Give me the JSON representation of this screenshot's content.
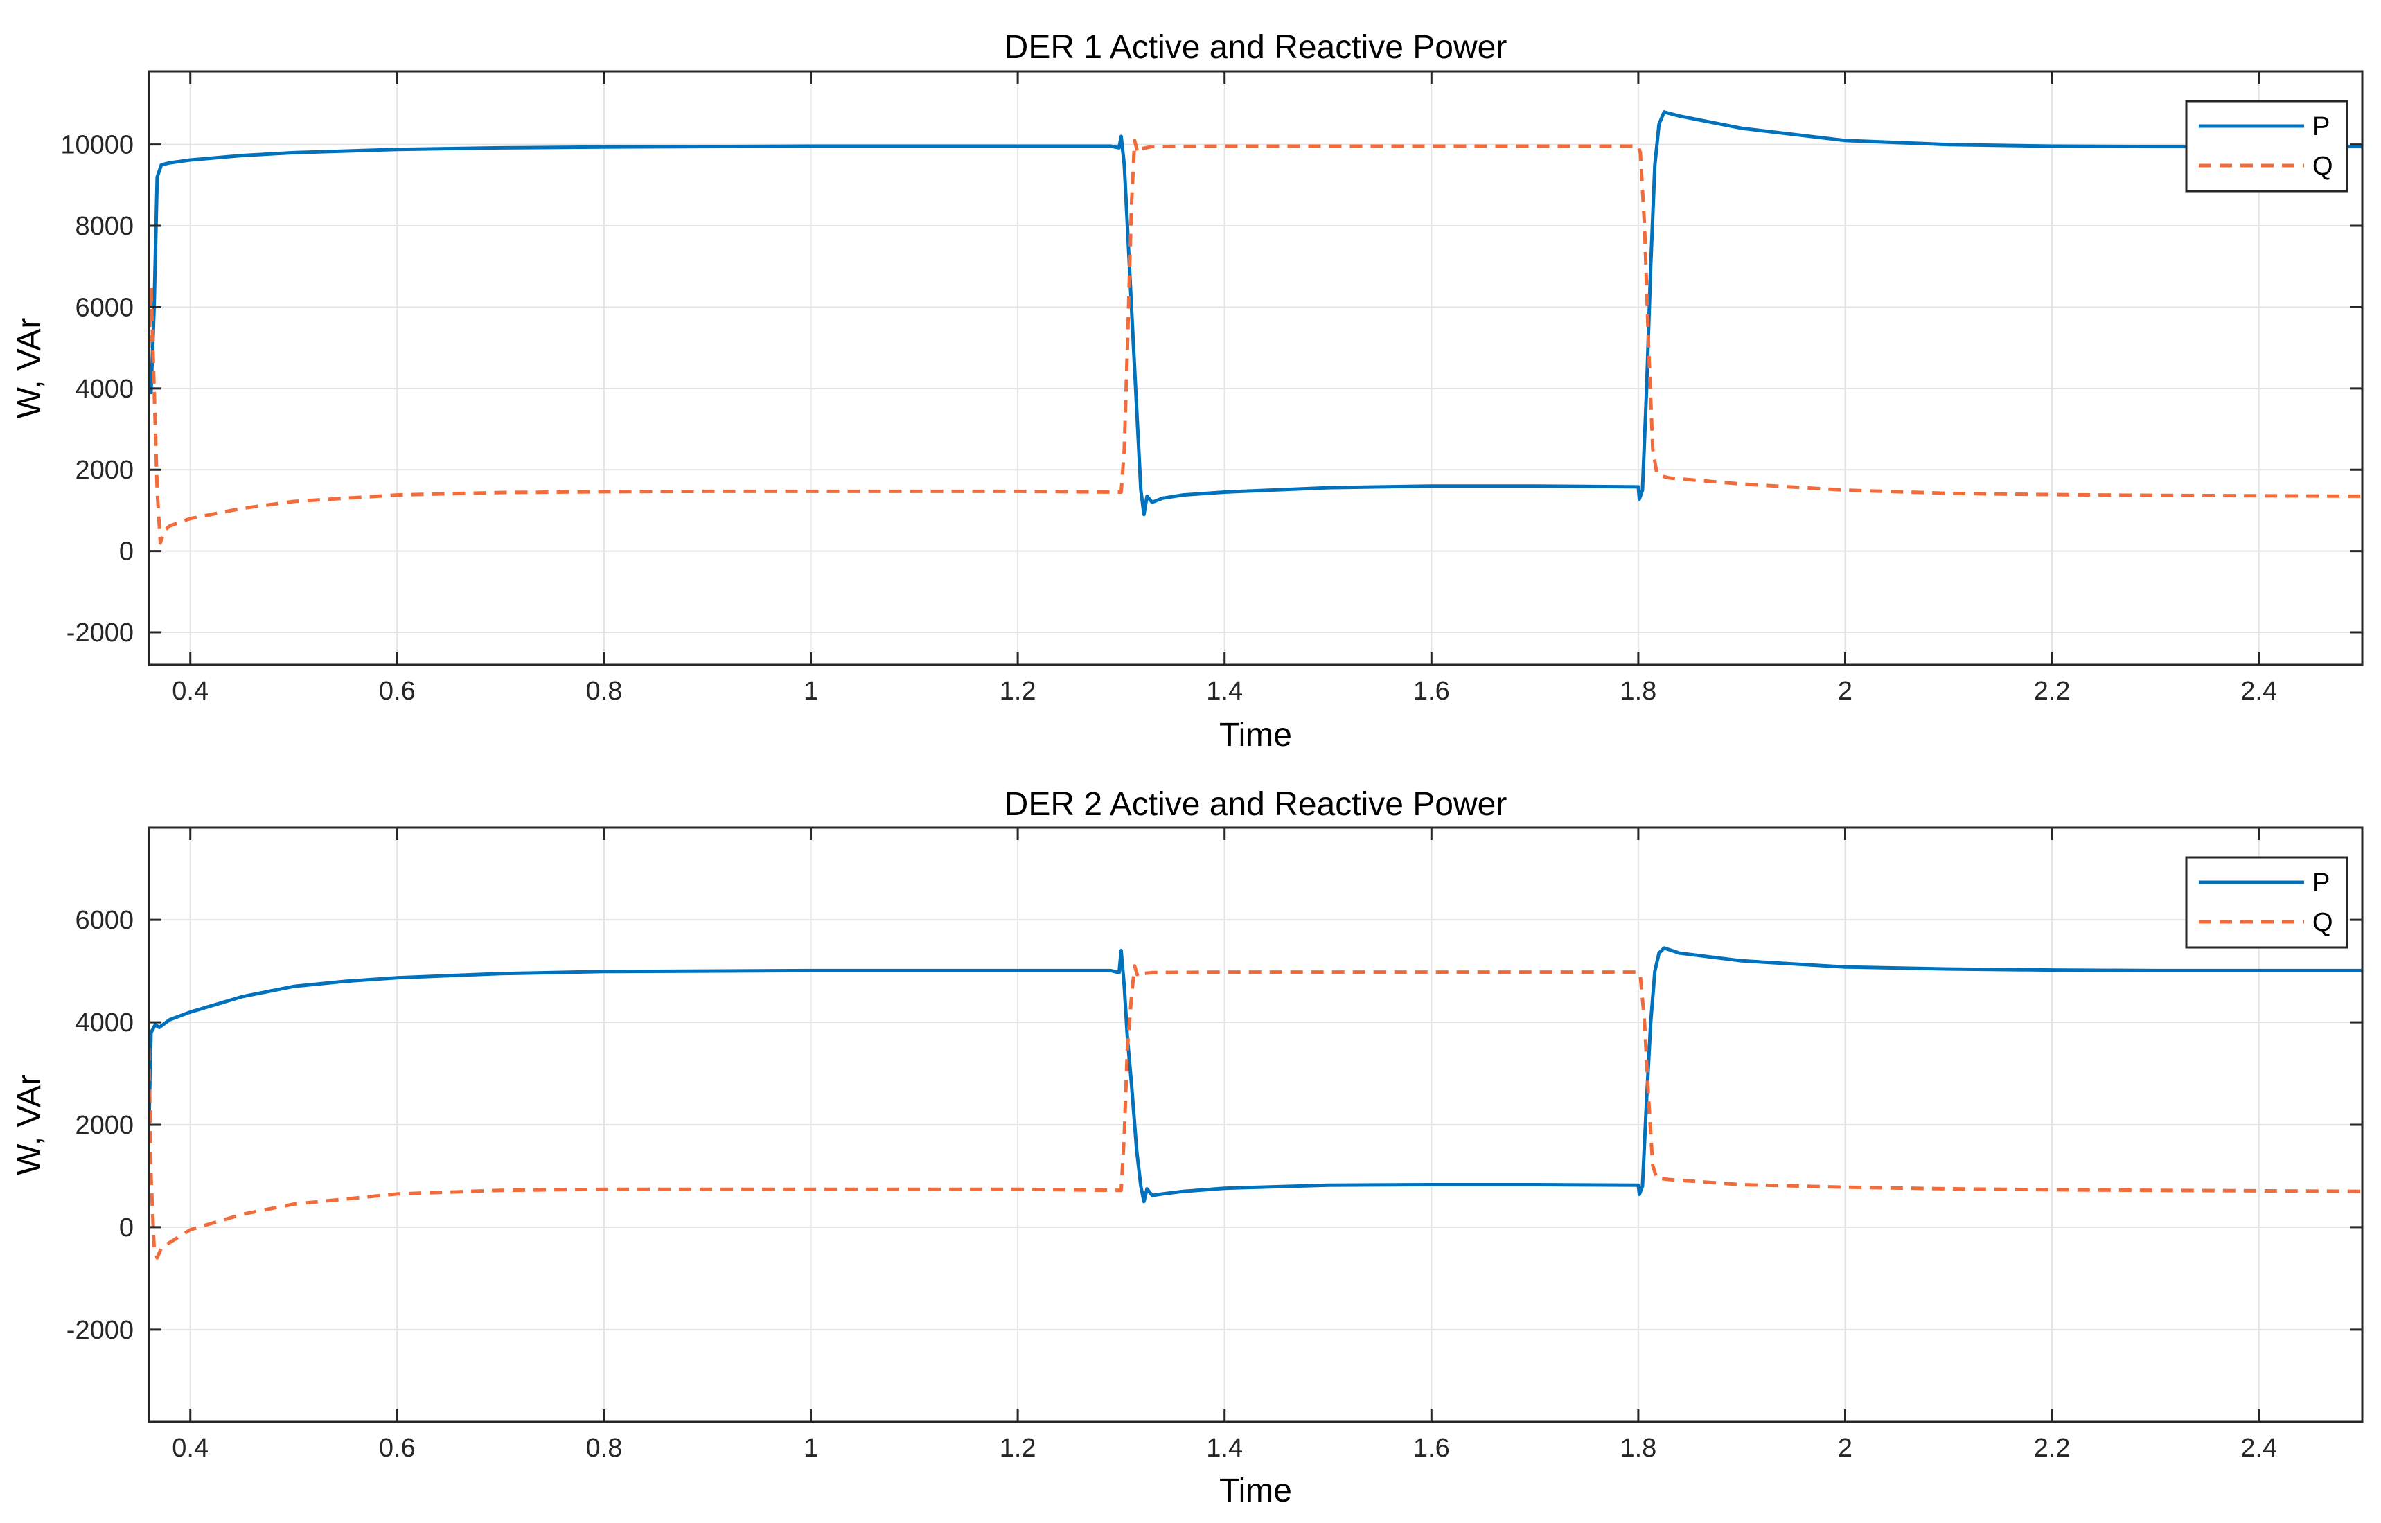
{
  "chart_data": [
    {
      "type": "line",
      "title": "DER 1 Active and Reactive Power",
      "xlabel": "Time",
      "ylabel": "W, VAr",
      "xlim": [
        0.36,
        2.5
      ],
      "ylim": [
        -2800,
        11800
      ],
      "xticks": [
        0.4,
        0.6,
        0.8,
        1,
        1.2,
        1.4,
        1.6,
        1.8,
        2,
        2.2,
        2.4
      ],
      "xtick_labels": [
        "0.4",
        "0.6",
        "0.8",
        "1",
        "1.2",
        "1.4",
        "1.6",
        "1.8",
        "2",
        "2.2",
        "2.4"
      ],
      "yticks": [
        -2000,
        0,
        2000,
        4000,
        6000,
        8000,
        10000
      ],
      "ytick_labels": [
        "-2000",
        "0",
        "2000",
        "4000",
        "6000",
        "8000",
        "10000"
      ],
      "grid": true,
      "legend": "top-right",
      "series": [
        {
          "name": "P",
          "style": "solid",
          "color": "#0072BD",
          "x": [
            0.36,
            0.362,
            0.365,
            0.368,
            0.372,
            0.38,
            0.4,
            0.45,
            0.5,
            0.6,
            0.7,
            0.8,
            0.9,
            1.0,
            1.1,
            1.2,
            1.29,
            1.298,
            1.3,
            1.303,
            1.306,
            1.31,
            1.315,
            1.319,
            1.322,
            1.325,
            1.33,
            1.34,
            1.36,
            1.4,
            1.5,
            1.6,
            1.7,
            1.8,
            1.801,
            1.804,
            1.808,
            1.812,
            1.816,
            1.82,
            1.825,
            1.84,
            1.9,
            2.0,
            2.1,
            2.2,
            2.3,
            2.4,
            2.5
          ],
          "y": [
            4200,
            3900,
            6000,
            9200,
            9500,
            9550,
            9620,
            9730,
            9800,
            9880,
            9920,
            9940,
            9950,
            9960,
            9960,
            9960,
            9960,
            9920,
            10200,
            9500,
            8000,
            6000,
            3500,
            1500,
            900,
            1350,
            1200,
            1300,
            1380,
            1450,
            1560,
            1600,
            1600,
            1580,
            1280,
            1500,
            4000,
            7000,
            9500,
            10500,
            10800,
            10700,
            10400,
            10100,
            10000,
            9960,
            9950,
            9950,
            9950
          ]
        },
        {
          "name": "Q",
          "style": "dashed",
          "color": "#F26B3A",
          "x": [
            0.36,
            0.362,
            0.365,
            0.368,
            0.371,
            0.375,
            0.38,
            0.4,
            0.45,
            0.5,
            0.6,
            0.7,
            0.8,
            0.9,
            1.0,
            1.1,
            1.2,
            1.3,
            1.303,
            1.306,
            1.31,
            1.313,
            1.316,
            1.32,
            1.33,
            1.4,
            1.5,
            1.6,
            1.7,
            1.8,
            1.802,
            1.806,
            1.81,
            1.814,
            1.818,
            1.822,
            1.83,
            1.9,
            2.0,
            2.1,
            2.2,
            2.3,
            2.4,
            2.5
          ],
          "y": [
            5000,
            6500,
            4000,
            1500,
            200,
            500,
            620,
            800,
            1050,
            1220,
            1380,
            1440,
            1460,
            1470,
            1470,
            1470,
            1470,
            1450,
            2500,
            5000,
            8500,
            10100,
            9800,
            9900,
            9950,
            9960,
            9960,
            9960,
            9960,
            9960,
            9800,
            8000,
            5000,
            2500,
            1900,
            1850,
            1800,
            1650,
            1500,
            1420,
            1390,
            1370,
            1360,
            1350
          ]
        }
      ]
    },
    {
      "type": "line",
      "title": "DER 2 Active and Reactive Power",
      "xlabel": "Time",
      "ylabel": "W, VAr",
      "xlim": [
        0.36,
        2.5
      ],
      "ylim": [
        -3800,
        7800
      ],
      "xticks": [
        0.4,
        0.6,
        0.8,
        1,
        1.2,
        1.4,
        1.6,
        1.8,
        2,
        2.2,
        2.4
      ],
      "xtick_labels": [
        "0.4",
        "0.6",
        "0.8",
        "1",
        "1.2",
        "1.4",
        "1.6",
        "1.8",
        "2",
        "2.2",
        "2.4"
      ],
      "yticks": [
        -2000,
        0,
        2000,
        4000,
        6000
      ],
      "ytick_labels": [
        "-2000",
        "0",
        "2000",
        "4000",
        "6000"
      ],
      "grid": true,
      "legend": "top-right",
      "series": [
        {
          "name": "P",
          "style": "solid",
          "color": "#0072BD",
          "x": [
            0.36,
            0.362,
            0.366,
            0.37,
            0.38,
            0.4,
            0.45,
            0.5,
            0.55,
            0.6,
            0.7,
            0.8,
            0.9,
            1.0,
            1.1,
            1.2,
            1.29,
            1.298,
            1.3,
            1.303,
            1.306,
            1.31,
            1.315,
            1.319,
            1.322,
            1.325,
            1.33,
            1.34,
            1.36,
            1.4,
            1.5,
            1.6,
            1.7,
            1.8,
            1.801,
            1.804,
            1.808,
            1.812,
            1.816,
            1.82,
            1.825,
            1.84,
            1.9,
            2.0,
            2.1,
            2.2,
            2.3,
            2.4,
            2.5
          ],
          "y": [
            2000,
            3800,
            3950,
            3900,
            4050,
            4200,
            4500,
            4700,
            4800,
            4870,
            4950,
            4990,
            5000,
            5010,
            5010,
            5010,
            5010,
            4970,
            5400,
            4700,
            3700,
            2800,
            1500,
            800,
            500,
            750,
            620,
            650,
            700,
            760,
            820,
            830,
            830,
            820,
            640,
            800,
            2500,
            4000,
            5000,
            5350,
            5450,
            5350,
            5200,
            5080,
            5040,
            5020,
            5010,
            5010,
            5010
          ]
        },
        {
          "name": "Q",
          "style": "dashed",
          "color": "#F26B3A",
          "x": [
            0.36,
            0.362,
            0.365,
            0.368,
            0.372,
            0.38,
            0.4,
            0.45,
            0.5,
            0.6,
            0.7,
            0.8,
            0.9,
            1.0,
            1.1,
            1.2,
            1.3,
            1.303,
            1.306,
            1.31,
            1.313,
            1.316,
            1.32,
            1.33,
            1.4,
            1.5,
            1.6,
            1.7,
            1.8,
            1.802,
            1.806,
            1.81,
            1.814,
            1.818,
            1.822,
            1.83,
            1.9,
            2.0,
            2.1,
            2.2,
            2.3,
            2.4,
            2.5
          ],
          "y": [
            3500,
            1000,
            -400,
            -600,
            -400,
            -300,
            -50,
            250,
            450,
            650,
            720,
            740,
            740,
            740,
            740,
            740,
            720,
            1800,
            3500,
            4500,
            5100,
            4900,
            4950,
            4970,
            4980,
            4980,
            4980,
            4980,
            4980,
            4900,
            4000,
            2500,
            1200,
            950,
            950,
            930,
            830,
            780,
            750,
            730,
            720,
            710,
            700
          ]
        }
      ]
    }
  ]
}
